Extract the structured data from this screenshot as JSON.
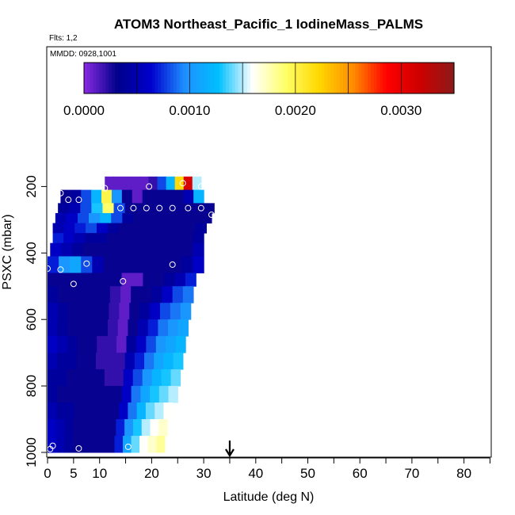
{
  "chart_data": {
    "type": "heatmap",
    "title": "ATOM3 Northeast_Pacific_1 IodineMass_PALMS",
    "subtitle": "Flts: 1,2",
    "date_label": "MMDD: 0928,1001",
    "xlabel": "Latitude (deg N)",
    "ylabel": "PSXC (mbar)",
    "xlim": [
      0,
      85
    ],
    "ylim": [
      1000,
      0
    ],
    "x_ticks": [
      0,
      5,
      10,
      20,
      30,
      40,
      50,
      60,
      70,
      80
    ],
    "y_ticks": [
      200,
      400,
      600,
      800,
      1000
    ],
    "colorbar": {
      "range": [
        0,
        0.0035
      ],
      "tick_values": [
        0,
        0.001,
        0.002,
        0.003
      ],
      "tick_labels": [
        "0.0000",
        "0.0010",
        "0.0020",
        "0.0030"
      ],
      "colors": [
        "#8a2be2",
        "#00008b",
        "#0000cd",
        "#1e90ff",
        "#00bfff",
        "#ffffff",
        "#ffff66",
        "#ffd700",
        "#ff8c00",
        "#ff0000",
        "#cc0000",
        "#8b1a1a"
      ]
    },
    "marker_latitude": 35,
    "profile": [
      {
        "p_top": 170,
        "p_bot": 210,
        "lat_min": 11,
        "lat_max": 29.5,
        "values": [
          0.0001,
          0.0001,
          0.0001,
          0.0001,
          0.0001,
          0.0002,
          0.0008,
          0.0012,
          0.0022,
          0.0031,
          0.0015
        ]
      },
      {
        "p_top": 210,
        "p_bot": 250,
        "lat_min": 2.5,
        "lat_max": 30,
        "values": [
          0.0003,
          0.0004,
          0.0008,
          0.0012,
          0.002,
          0.001,
          0.0003,
          0.0001,
          0.0003,
          0.0003,
          0.0003,
          0.0003,
          0.0005,
          0.0012
        ]
      },
      {
        "p_top": 250,
        "p_bot": 280,
        "lat_min": 2,
        "lat_max": 32,
        "values": [
          0.0004,
          0.0005,
          0.0008,
          0.0013,
          0.0019,
          0.0008,
          0.0003,
          0.0003,
          0.0003,
          0.0003,
          0.0003,
          0.0003,
          0.0003,
          0.0003
        ]
      },
      {
        "p_top": 280,
        "p_bot": 310,
        "lat_min": 1.5,
        "lat_max": 31.5,
        "values": [
          0.0005,
          0.0006,
          0.0008,
          0.001,
          0.0012,
          0.0008,
          0.0004,
          0.0003,
          0.0003,
          0.0003,
          0.0003,
          0.0003,
          0.0003,
          0.0003
        ]
      },
      {
        "p_top": 310,
        "p_bot": 340,
        "lat_min": 1,
        "lat_max": 30.5,
        "values": [
          0.0005,
          0.0006,
          0.0007,
          0.0008,
          0.0006,
          0.0004,
          0.0003,
          0.0003,
          0.0003,
          0.0003,
          0.0003,
          0.0003,
          0.0003,
          0.0004
        ]
      },
      {
        "p_top": 340,
        "p_bot": 370,
        "lat_min": 1,
        "lat_max": 30,
        "values": [
          0.0007,
          0.0006,
          0.0005,
          0.0004,
          0.0004,
          0.0003,
          0.0003,
          0.0003,
          0.0003,
          0.0003,
          0.0003,
          0.0003,
          0.0003,
          0.0004
        ]
      },
      {
        "p_top": 370,
        "p_bot": 410,
        "lat_min": 0.5,
        "lat_max": 30,
        "values": [
          0.0006,
          0.0005,
          0.0004,
          0.0003,
          0.0003,
          0.0003,
          0.0003,
          0.0003,
          0.0003,
          0.0003,
          0.0003,
          0.0003,
          0.0003,
          0.0005
        ]
      },
      {
        "p_top": 410,
        "p_bot": 460,
        "lat_min": 0,
        "lat_max": 30,
        "values": [
          0.0007,
          0.001,
          0.0011,
          0.0008,
          0.0005,
          0.0003,
          0.0003,
          0.0003,
          0.0003,
          0.0003,
          0.0003,
          0.0003,
          0.0004,
          0.0006
        ]
      },
      {
        "p_top": 460,
        "p_bot": 500,
        "lat_min": 0,
        "lat_max": 28.5,
        "values": [
          0.0003,
          0.0003,
          0.0003,
          0.0003,
          0.0003,
          0.0003,
          0.0003,
          0.0001,
          0.0001,
          0.0003,
          0.0003,
          0.0004,
          0.0005,
          0.0007
        ]
      },
      {
        "p_top": 500,
        "p_bot": 550,
        "lat_min": 0,
        "lat_max": 28,
        "values": [
          0.0004,
          0.0003,
          0.0003,
          0.0003,
          0.0003,
          0.0003,
          0.0002,
          0.0001,
          0.0003,
          0.0003,
          0.0004,
          0.0006,
          0.0008,
          0.0009
        ]
      },
      {
        "p_top": 550,
        "p_bot": 600,
        "lat_min": 0,
        "lat_max": 27.5,
        "values": [
          0.0005,
          0.0004,
          0.0003,
          0.0003,
          0.0003,
          0.0003,
          0.0002,
          0.0001,
          0.0003,
          0.0004,
          0.0006,
          0.0008,
          0.0009,
          0.001
        ]
      },
      {
        "p_top": 600,
        "p_bot": 650,
        "lat_min": 0,
        "lat_max": 27,
        "values": [
          0.0005,
          0.0004,
          0.0003,
          0.0003,
          0.0003,
          0.0003,
          0.0002,
          0.0001,
          0.0003,
          0.0005,
          0.0007,
          0.0009,
          0.001,
          0.0011
        ]
      },
      {
        "p_top": 650,
        "p_bot": 700,
        "lat_min": 0,
        "lat_max": 26.5,
        "values": [
          0.0006,
          0.0005,
          0.0004,
          0.0003,
          0.0003,
          0.0002,
          0.0002,
          0.0001,
          0.0004,
          0.0006,
          0.0008,
          0.001,
          0.0011,
          0.0012
        ]
      },
      {
        "p_top": 700,
        "p_bot": 750,
        "lat_min": 0,
        "lat_max": 26,
        "values": [
          0.0005,
          0.0004,
          0.0004,
          0.0003,
          0.0003,
          0.0002,
          0.0002,
          0.0002,
          0.0005,
          0.0007,
          0.0009,
          0.0011,
          0.0012,
          0.0013
        ]
      },
      {
        "p_top": 750,
        "p_bot": 800,
        "lat_min": 0,
        "lat_max": 25.5,
        "values": [
          0.0004,
          0.0004,
          0.0003,
          0.0003,
          0.0003,
          0.0003,
          0.0002,
          0.0002,
          0.0006,
          0.0008,
          0.001,
          0.0012,
          0.0013,
          0.0014
        ]
      },
      {
        "p_top": 800,
        "p_bot": 850,
        "lat_min": 0,
        "lat_max": 25,
        "values": [
          0.0004,
          0.0003,
          0.0003,
          0.0003,
          0.0003,
          0.0003,
          0.0003,
          0.0003,
          0.0006,
          0.0009,
          0.0011,
          0.0013,
          0.0014,
          0.0015
        ]
      },
      {
        "p_top": 850,
        "p_bot": 900,
        "lat_min": 0,
        "lat_max": 24,
        "values": [
          0.0005,
          0.0004,
          0.0004,
          0.0003,
          0.0003,
          0.0003,
          0.0003,
          0.0003,
          0.0006,
          0.0009,
          0.0012,
          0.0014,
          0.0015,
          0.0016
        ]
      },
      {
        "p_top": 900,
        "p_bot": 950,
        "lat_min": 0,
        "lat_max": 23,
        "values": [
          0.0006,
          0.0005,
          0.0004,
          0.0003,
          0.0003,
          0.0003,
          0.0003,
          0.0003,
          0.0007,
          0.001,
          0.0013,
          0.0015,
          0.0016,
          0.0017
        ]
      },
      {
        "p_top": 950,
        "p_bot": 1000,
        "lat_min": 0,
        "lat_max": 22.5,
        "values": [
          0.0006,
          0.0005,
          0.0004,
          0.0003,
          0.0003,
          0.0003,
          0.0003,
          0.0003,
          0.0007,
          0.0011,
          0.0014,
          0.0016,
          0.0017,
          0.0018
        ]
      }
    ],
    "samples": [
      {
        "lat": 11,
        "p": 205
      },
      {
        "lat": 19.5,
        "p": 200
      },
      {
        "lat": 26,
        "p": 190
      },
      {
        "lat": 29.5,
        "p": 200
      },
      {
        "lat": 2.5,
        "p": 220
      },
      {
        "lat": 4,
        "p": 240
      },
      {
        "lat": 6,
        "p": 240
      },
      {
        "lat": 14,
        "p": 265
      },
      {
        "lat": 16.5,
        "p": 265
      },
      {
        "lat": 19,
        "p": 265
      },
      {
        "lat": 21.5,
        "p": 265
      },
      {
        "lat": 24,
        "p": 265
      },
      {
        "lat": 27,
        "p": 265
      },
      {
        "lat": 29.5,
        "p": 265
      },
      {
        "lat": 31.5,
        "p": 285
      },
      {
        "lat": 7.5,
        "p": 432
      },
      {
        "lat": 24,
        "p": 435
      },
      {
        "lat": 0,
        "p": 447
      },
      {
        "lat": 2.5,
        "p": 450
      },
      {
        "lat": 14.5,
        "p": 485
      },
      {
        "lat": 5,
        "p": 493
      },
      {
        "lat": 1,
        "p": 980
      },
      {
        "lat": 0.5,
        "p": 990
      },
      {
        "lat": 6,
        "p": 988
      },
      {
        "lat": 15.5,
        "p": 983
      }
    ]
  }
}
